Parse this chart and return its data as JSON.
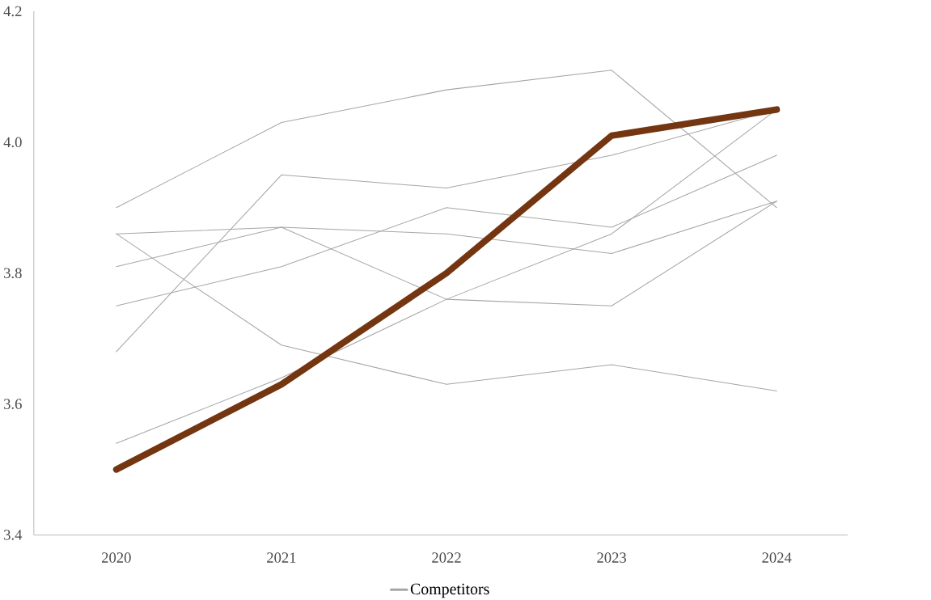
{
  "chart_data": {
    "type": "line",
    "categories": [
      "2020",
      "2021",
      "2022",
      "2023",
      "2024"
    ],
    "ylim": [
      3.4,
      4.2
    ],
    "yticks": [
      3.4,
      3.6,
      3.8,
      {
        "value": 4.0,
        "label": "4.0"
      },
      4.2
    ],
    "legend": "bottom",
    "grid": false,
    "series": [
      {
        "name": "Competitors",
        "color": "#a6a6a6",
        "values": [
          3.9,
          4.03,
          4.08,
          4.11,
          3.9
        ]
      },
      {
        "color": "#a6a6a6",
        "values": [
          3.68,
          3.95,
          3.93,
          3.98,
          4.05
        ]
      },
      {
        "color": "#a6a6a6",
        "values": [
          3.86,
          3.87,
          3.86,
          3.83,
          3.91
        ]
      },
      {
        "color": "#a6a6a6",
        "values": [
          3.81,
          3.87,
          3.76,
          3.75,
          3.91
        ]
      },
      {
        "color": "#a6a6a6",
        "values": [
          3.75,
          3.81,
          3.9,
          3.87,
          3.98
        ]
      },
      {
        "color": "#a6a6a6",
        "values": [
          3.86,
          3.69,
          3.63,
          3.66,
          3.62
        ]
      },
      {
        "color": "#a6a6a6",
        "values": [
          3.54,
          3.64,
          3.76,
          3.86,
          4.05
        ]
      },
      {
        "color": "#743511",
        "values": [
          3.5,
          3.63,
          3.8,
          4.01,
          4.05
        ]
      }
    ]
  }
}
